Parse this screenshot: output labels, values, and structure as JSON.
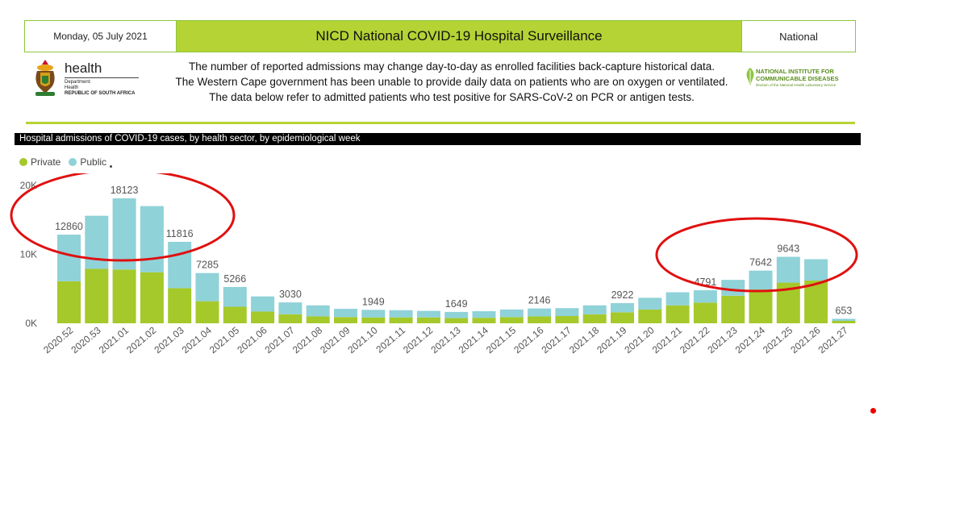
{
  "header": {
    "date": "Monday, 05 July 2021",
    "title": "NICD National COVID-19 Hospital Surveillance",
    "scope": "National"
  },
  "dept_logo": {
    "name": "health",
    "lines": [
      "Department:",
      "Health",
      "REPUBLIC OF SOUTH AFRICA"
    ]
  },
  "notes": [
    "The number of reported admissions may change day-to-day as enrolled facilities back-capture historical data.",
    "The Western Cape government has been unable to provide daily data on patients who are on oxygen or ventilated.",
    "The data below refer to admitted patients who test positive for SARS-CoV-2 on PCR or antigen tests."
  ],
  "nicd_logo": {
    "lines": [
      "NATIONAL INSTITUTE FOR",
      "COMMUNICABLE DISEASES"
    ],
    "sub": "Division of the National Health Laboratory Service"
  },
  "colors": {
    "private": "#a5c92a",
    "public": "#8fd2d8",
    "accent": "#b5d334",
    "annotation": "#e01010"
  },
  "chart_data": {
    "type": "bar",
    "stacked": true,
    "title": "Hospital admissions of COVID-19 cases, by health sector, by epidemiological week",
    "legend_position": "top-left",
    "ylim": [
      0,
      20000
    ],
    "yticks": [
      "0K",
      "10K",
      "20K"
    ],
    "ytick_values": [
      0,
      10000,
      20000
    ],
    "categories": [
      "2020.52",
      "2020.53",
      "2021.01",
      "2021.02",
      "2021.03",
      "2021.04",
      "2021.05",
      "2021.06",
      "2021.07",
      "2021.08",
      "2021.09",
      "2021.10",
      "2021.11",
      "2021.12",
      "2021.13",
      "2021.14",
      "2021.15",
      "2021.16",
      "2021.17",
      "2021.18",
      "2021.19",
      "2021.20",
      "2021.21",
      "2021.22",
      "2021.23",
      "2021.24",
      "2021.25",
      "2021.26",
      "2021.27"
    ],
    "series": [
      {
        "name": "Private",
        "values": [
          6100,
          7900,
          7800,
          7400,
          5100,
          3200,
          2400,
          1700,
          1300,
          1000,
          900,
          850,
          850,
          850,
          750,
          800,
          900,
          1000,
          1050,
          1300,
          1600,
          2000,
          2600,
          3000,
          4000,
          4900,
          5900,
          6200,
          350
        ]
      },
      {
        "name": "Public",
        "values": [
          6760,
          7700,
          10323,
          9600,
          6716,
          4085,
          2866,
          2200,
          1730,
          1600,
          1200,
          1099,
          1050,
          950,
          899,
          950,
          1100,
          1146,
          1150,
          1300,
          1322,
          1700,
          1900,
          1791,
          2300,
          2742,
          3743,
          3100,
          303
        ]
      }
    ],
    "totals": [
      12860,
      15600,
      18123,
      17000,
      11816,
      7285,
      5266,
      3900,
      3030,
      2600,
      2100,
      1949,
      1900,
      1800,
      1649,
      1750,
      2000,
      2146,
      2200,
      2600,
      2922,
      3700,
      4500,
      4791,
      6300,
      7642,
      9643,
      9300,
      653
    ],
    "data_labels": {
      "0": "12860",
      "2": "18123",
      "4": "11816",
      "5": "7285",
      "6": "5266",
      "8": "3030",
      "11": "1949",
      "14": "1649",
      "17": "2146",
      "20": "2922",
      "23": "4791",
      "25": "7642",
      "26": "9643",
      "28": "653"
    },
    "annotations": [
      "ellipse around weeks 2020.52–2021.03",
      "ellipse around weeks 2021.22–2021.26"
    ]
  }
}
